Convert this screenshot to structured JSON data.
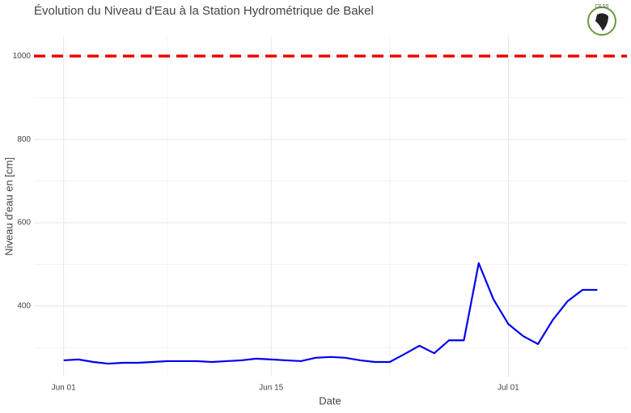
{
  "chart_data": {
    "type": "line",
    "title": "Évolution du Niveau d'Eau à la Station Hydrométrique de Bakel",
    "logo_text": "CILSS",
    "x_label": "Date",
    "y_label": "Niveau d'eau en [cm]",
    "x": [
      "06-01",
      "06-02",
      "06-03",
      "06-04",
      "06-05",
      "06-06",
      "06-07",
      "06-08",
      "06-09",
      "06-10",
      "06-11",
      "06-12",
      "06-13",
      "06-14",
      "06-15",
      "06-16",
      "06-17",
      "06-18",
      "06-19",
      "06-20",
      "06-21",
      "06-22",
      "06-23",
      "06-24",
      "06-25",
      "06-26",
      "06-27",
      "06-28",
      "06-29",
      "06-30",
      "07-01",
      "07-02",
      "07-03",
      "07-04",
      "07-05",
      "07-06",
      "07-07"
    ],
    "series": [
      {
        "color": "#0000ee",
        "values": [
          270,
          272,
          266,
          262,
          264,
          264,
          266,
          268,
          268,
          268,
          266,
          268,
          270,
          274,
          272,
          270,
          268,
          276,
          278,
          276,
          270,
          266,
          266,
          285,
          305,
          287,
          318,
          318,
          503,
          416,
          357,
          328,
          309,
          367,
          412,
          439,
          439
        ]
      }
    ],
    "threshold": {
      "value": 1000,
      "color": "#ee0000"
    },
    "xlim": [
      "05-30",
      "07-09"
    ],
    "xticks": [
      {
        "value": "06-01",
        "label": "Jun 01"
      },
      {
        "value": "06-15",
        "label": "Jun 15"
      },
      {
        "value": "07-01",
        "label": "Jul 01"
      }
    ],
    "ylim": [
      231,
      1047
    ],
    "yticks": [
      400,
      600,
      800,
      1000
    ],
    "grid": true
  }
}
